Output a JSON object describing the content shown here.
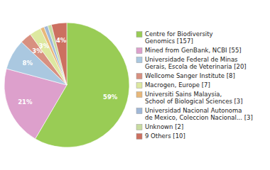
{
  "chart_data": {
    "type": "pie",
    "categories": [
      "Centre for Biodiversity\nGenomics [157]",
      "Mined from GenBank, NCBI [55]",
      "Universidade Federal de Minas\nGerais, Escola de Veterinaria [20]",
      "Wellcome Sanger Institute [8]",
      "Macrogen, Europe [7]",
      "Universiti Sains Malaysia,\nSchool of Biological Sciences [3]",
      "Universidad Nacional Autonoma\nde Mexico, Coleccion Nacional... [3]",
      "Unknown [2]",
      "9 Others [10]"
    ],
    "values": [
      59,
      21,
      8,
      3,
      3,
      1,
      1,
      1,
      4
    ],
    "value_labels": [
      "59%",
      "21%",
      "8%",
      "3%",
      "3%",
      null,
      null,
      null,
      "4%"
    ],
    "colors": [
      "#99cc55",
      "#dda0cc",
      "#aac8e0",
      "#d89080",
      "#dde8a0",
      "#e8b87a",
      "#a0b8d8",
      "#c8dca0",
      "#cc7060"
    ],
    "data_labels": true,
    "legend": "right"
  }
}
